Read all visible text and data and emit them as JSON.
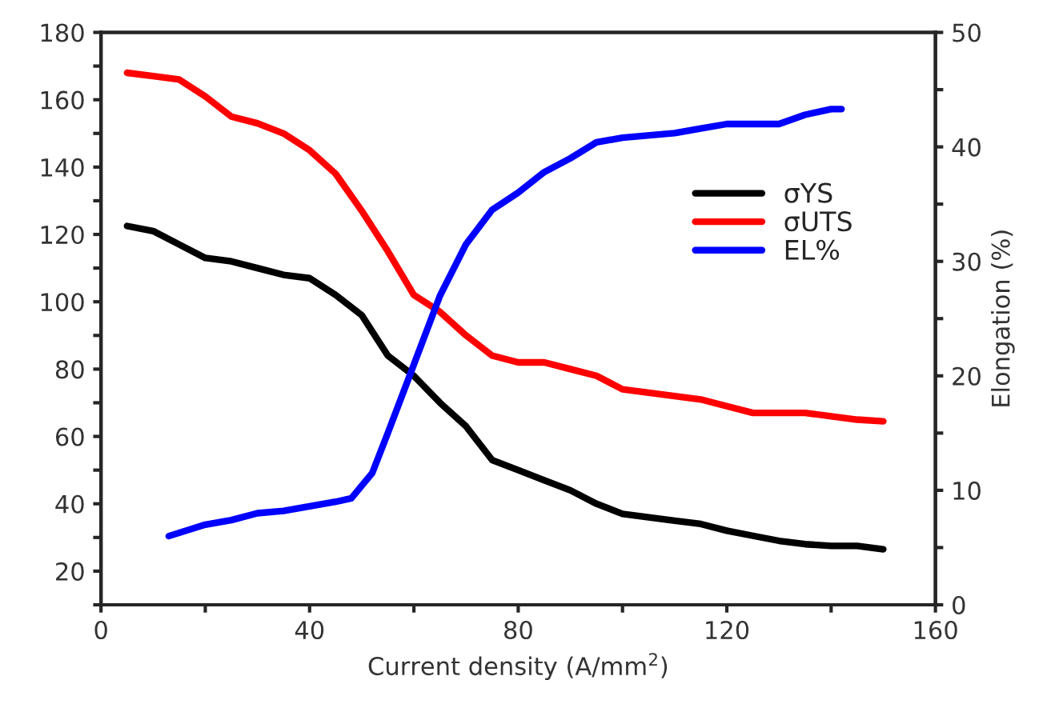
{
  "chart_data": {
    "type": "line",
    "xlabel": "Current density (A/mm$^{2}$)",
    "y2label": "Elongation (%)",
    "xlim": [
      0,
      160
    ],
    "xticks": [
      0,
      {
        "value": 20,
        "label": null
      },
      40,
      {
        "value": 60,
        "label": null
      },
      80,
      {
        "value": 100,
        "label": null
      },
      120,
      {
        "value": 140,
        "label": null
      },
      160
    ],
    "ylim": [
      10,
      180
    ],
    "yticks": [
      {
        "value": 10,
        "label": null
      },
      20,
      {
        "value": 30,
        "label": null
      },
      40,
      {
        "value": 50,
        "label": null
      },
      60,
      {
        "value": 70,
        "label": null
      },
      80,
      {
        "value": 90,
        "label": null
      },
      100,
      {
        "value": 110,
        "label": null
      },
      120,
      {
        "value": 130,
        "label": null
      },
      140,
      {
        "value": 150,
        "label": null
      },
      160,
      {
        "value": 170,
        "label": null
      },
      180
    ],
    "y2lim": [
      0,
      50
    ],
    "y2ticks": [
      0,
      {
        "value": 5,
        "label": null
      },
      10,
      {
        "value": 15,
        "label": null
      },
      20,
      {
        "value": 25,
        "label": null
      },
      30,
      {
        "value": 35,
        "label": null
      },
      40,
      {
        "value": 45,
        "label": null
      },
      50
    ],
    "legend": "right",
    "grid": false,
    "marker": "none",
    "line_style": "solid",
    "series": [
      {
        "name": "σYS",
        "color": "#000000",
        "x": [
          5,
          10,
          15,
          20,
          25,
          30,
          35,
          40,
          45,
          50,
          55,
          60,
          65,
          70,
          75,
          80,
          85,
          90,
          95,
          100,
          105,
          110,
          115,
          120,
          125,
          130,
          135,
          140,
          145,
          150
        ],
        "values": [
          122.5,
          121,
          117,
          113,
          112,
          110,
          108,
          107,
          102,
          96,
          84,
          78,
          70,
          63,
          53,
          50,
          47,
          44,
          40,
          37,
          36,
          35,
          34,
          32,
          30.5,
          29,
          28,
          27.5,
          27.5,
          26.5
        ]
      },
      {
        "name": "σUTS",
        "color": "#ff0000",
        "x": [
          5,
          10,
          15,
          20,
          25,
          30,
          35,
          40,
          45,
          50,
          55,
          60,
          65,
          70,
          75,
          80,
          85,
          90,
          95,
          100,
          105,
          110,
          115,
          120,
          125,
          130,
          135,
          140,
          145,
          150
        ],
        "values": [
          168,
          167,
          166,
          161,
          155,
          153,
          150,
          145,
          138,
          127,
          115,
          102,
          97,
          90,
          84,
          82,
          82,
          80,
          78,
          74,
          73,
          72,
          71,
          69,
          67,
          67,
          67,
          66,
          65,
          64.5
        ]
      },
      {
        "name": "EL%",
        "color": "#0000ff",
        "axis": "y2",
        "x": [
          13,
          20,
          25,
          30,
          35,
          40,
          45,
          48,
          52,
          55,
          60,
          65,
          70,
          75,
          80,
          85,
          90,
          95,
          100,
          110,
          115,
          120,
          125,
          130,
          135,
          140,
          142
        ],
        "values": [
          6,
          7,
          7.4,
          8,
          8.2,
          8.6,
          9,
          9.3,
          11.5,
          15,
          21,
          27,
          31.5,
          34.5,
          36,
          37.8,
          39,
          40.4,
          40.8,
          41.2,
          41.6,
          42,
          42,
          42,
          42.8,
          43.3,
          43.3
        ]
      }
    ]
  }
}
